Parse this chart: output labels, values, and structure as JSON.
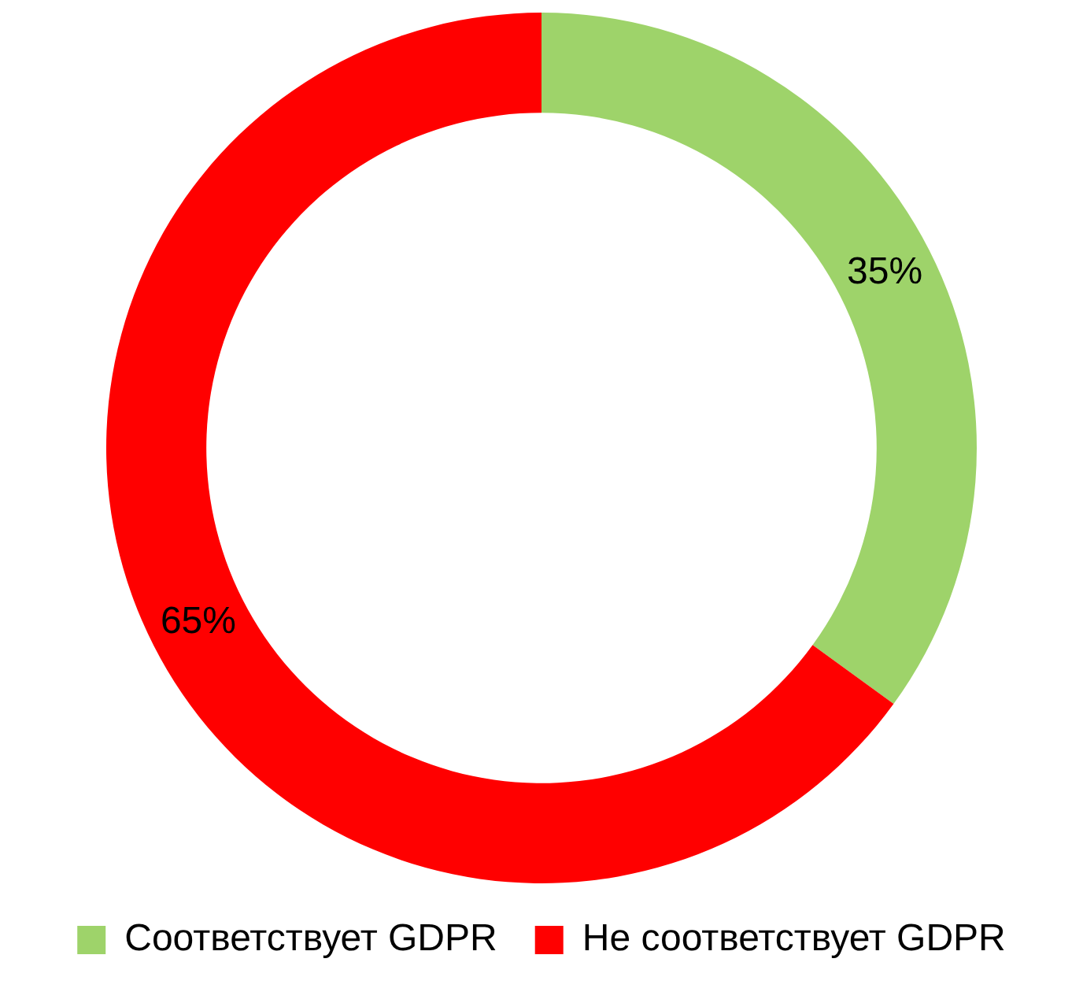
{
  "chart_data": {
    "type": "donut",
    "categories": [
      "Соответствует GDPR",
      "Не соответствует GDPR"
    ],
    "values": [
      35,
      65
    ],
    "colors": [
      "#9ed36a",
      "#ff0000"
    ],
    "value_labels": [
      "35%",
      "65%"
    ],
    "legend": "bottom"
  }
}
